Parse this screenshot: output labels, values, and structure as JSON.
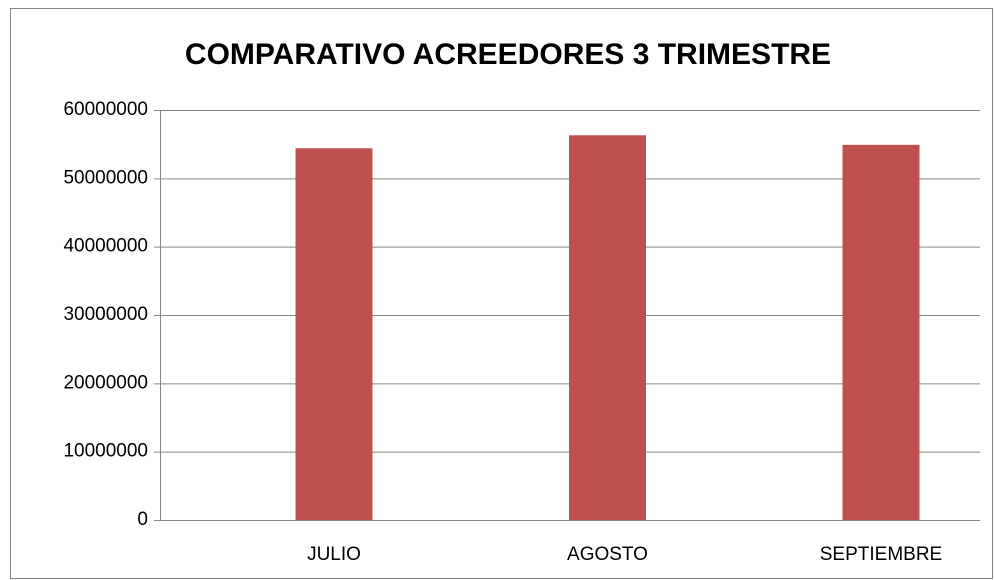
{
  "chart_data": {
    "type": "bar",
    "title": "COMPARATIVO ACREEDORES 3 TRIMESTRE",
    "categories": [
      "JULIO",
      "AGOSTO",
      "SEPTIEMBRE"
    ],
    "values": [
      54400000,
      56300000,
      54900000
    ],
    "color": "#c0504d",
    "ylim": [
      0,
      60000000
    ],
    "yticks": [
      0,
      10000000,
      20000000,
      30000000,
      40000000,
      50000000,
      60000000
    ],
    "grid": true
  }
}
